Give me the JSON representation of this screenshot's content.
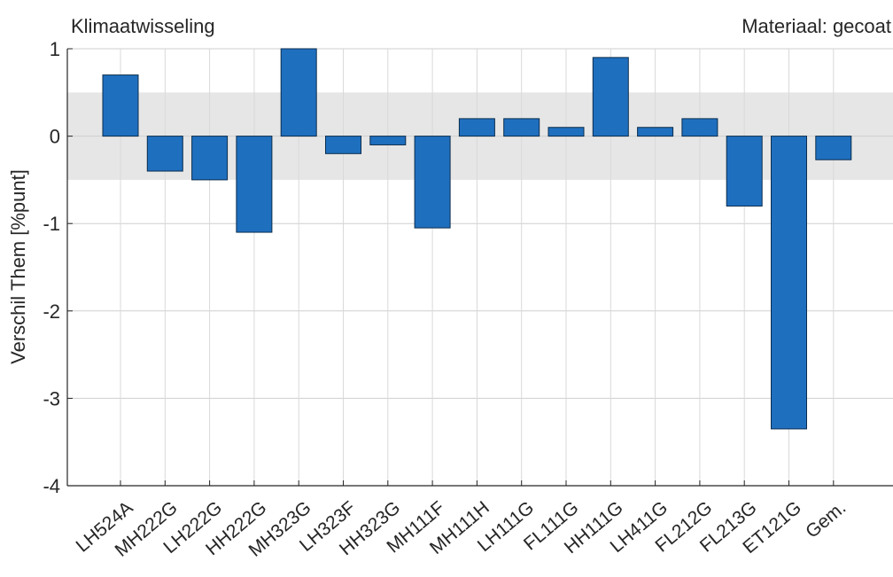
{
  "chart_data": {
    "type": "bar",
    "title_left": "Klimaatwisseling",
    "title_right": "Materiaal: gecoat",
    "xlabel": "",
    "ylabel": "Verschil Them [%punt]",
    "ylim": [
      -4,
      1
    ],
    "yticks": [
      1,
      0,
      -1,
      -2,
      -3,
      -4
    ],
    "ytick_labels": [
      "1",
      "0",
      "-1",
      "-2",
      "-3",
      "-4"
    ],
    "grid": true,
    "band": [
      -0.5,
      0.5
    ],
    "bar_color": "#1f6fbf",
    "band_color": "#e6e6e6",
    "categories": [
      "LH524A",
      "MH222G",
      "LH222G",
      "HH222G",
      "MH323G",
      "LH323F",
      "HH323G",
      "MH111F",
      "MH111H",
      "LH111G",
      "FL111G",
      "HH111G",
      "LH411G",
      "FL212G",
      "FL213G",
      "ET121G",
      "Gem."
    ],
    "values": [
      0.7,
      -0.4,
      -0.5,
      -1.1,
      1.0,
      -0.2,
      -0.1,
      -1.05,
      0.2,
      0.2,
      0.1,
      0.9,
      0.1,
      0.2,
      -0.8,
      -3.35,
      -0.27
    ]
  }
}
